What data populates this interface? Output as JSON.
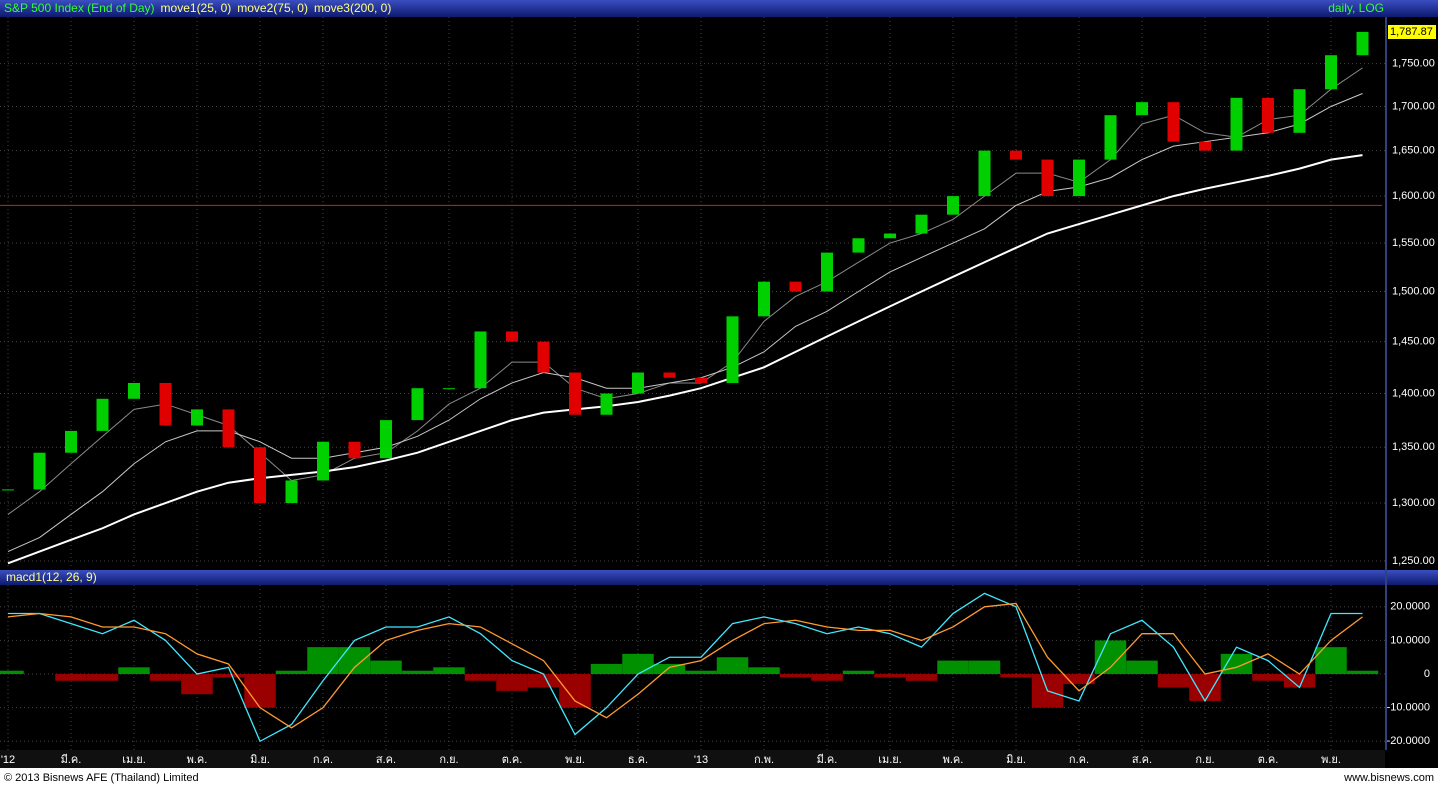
{
  "chart_data": [
    {
      "type": "candlestick",
      "title": "S&P 500 Index (End of Day)",
      "scale_label": "daily, LOG",
      "log_scale": true,
      "categories": [
        "'12",
        null,
        "มี.ค.",
        null,
        "เม.ย.",
        null,
        "พ.ค.",
        null,
        "มิ.ย.",
        null,
        "ก.ค.",
        null,
        "ส.ค.",
        null,
        "ก.ย.",
        null,
        "ต.ค.",
        null,
        "พ.ย.",
        null,
        "ธ.ค.",
        null,
        "'13",
        null,
        "ก.พ.",
        null,
        "มี.ค.",
        null,
        "เม.ย.",
        null,
        "พ.ค.",
        null,
        "มิ.ย.",
        null,
        "ก.ค.",
        null,
        "ส.ค.",
        null,
        "ก.ย.",
        null,
        "ต.ค.",
        null,
        "พ.ย.",
        null
      ],
      "close": [
        1312,
        1345,
        1365,
        1395,
        1410,
        1370,
        1385,
        1350,
        1300,
        1320,
        1355,
        1340,
        1375,
        1405,
        1405,
        1460,
        1450,
        1420,
        1380,
        1400,
        1420,
        1415,
        1410,
        1475,
        1510,
        1500,
        1540,
        1555,
        1560,
        1580,
        1600,
        1650,
        1640,
        1600,
        1640,
        1690,
        1705,
        1660,
        1650,
        1710,
        1670,
        1720,
        1760,
        1788
      ],
      "up_color": "#00d000",
      "down_color": "#e00000",
      "series": [
        {
          "name": "move1(25, 0)",
          "color": "#8a8a8a",
          "values": [
            1290,
            1310,
            1335,
            1360,
            1385,
            1390,
            1380,
            1370,
            1345,
            1320,
            1325,
            1340,
            1345,
            1365,
            1390,
            1405,
            1430,
            1430,
            1405,
            1395,
            1400,
            1410,
            1410,
            1430,
            1470,
            1495,
            1510,
            1530,
            1550,
            1560,
            1575,
            1600,
            1625,
            1625,
            1615,
            1640,
            1680,
            1690,
            1670,
            1665,
            1685,
            1690,
            1720,
            1745
          ]
        },
        {
          "name": "move2(75, 0)",
          "color": "#c8c8c8",
          "values": [
            1258,
            1270,
            1290,
            1310,
            1335,
            1355,
            1365,
            1365,
            1355,
            1340,
            1340,
            1345,
            1350,
            1360,
            1375,
            1395,
            1410,
            1420,
            1415,
            1405,
            1405,
            1410,
            1415,
            1425,
            1440,
            1465,
            1480,
            1500,
            1520,
            1535,
            1550,
            1565,
            1590,
            1605,
            1610,
            1620,
            1640,
            1655,
            1660,
            1665,
            1670,
            1680,
            1700,
            1715
          ]
        },
        {
          "name": "move3(200, 0)",
          "color": "#ffffff",
          "values": [
            1248,
            1258,
            1268,
            1278,
            1290,
            1300,
            1310,
            1318,
            1322,
            1325,
            1328,
            1332,
            1338,
            1345,
            1355,
            1365,
            1375,
            1382,
            1385,
            1388,
            1392,
            1398,
            1405,
            1415,
            1425,
            1440,
            1455,
            1470,
            1485,
            1500,
            1515,
            1530,
            1545,
            1560,
            1570,
            1580,
            1590,
            1600,
            1608,
            1615,
            1622,
            1630,
            1640,
            1645
          ]
        }
      ],
      "hline": 1590,
      "hline_color": "#d02020",
      "last_price": 1787.87,
      "last_price_label": "1,787.87",
      "ylim": [
        1250,
        1800
      ],
      "yticks": [
        {
          "value": 1250,
          "label": "1,250.00"
        },
        {
          "value": 1300,
          "label": "1,300.00"
        },
        {
          "value": 1350,
          "label": "1,350.00"
        },
        {
          "value": 1400,
          "label": "1,400.00"
        },
        {
          "value": 1450,
          "label": "1,450.00"
        },
        {
          "value": 1500,
          "label": "1,500.00"
        },
        {
          "value": 1550,
          "label": "1,550.00"
        },
        {
          "value": 1600,
          "label": "1,600.00"
        },
        {
          "value": 1650,
          "label": "1,650.00"
        },
        {
          "value": 1700,
          "label": "1,700.00"
        },
        {
          "value": 1750,
          "label": "1,750.00"
        }
      ],
      "grid": true
    },
    {
      "type": "line",
      "title": "macd1(12, 26, 9)",
      "series": [
        {
          "color": "#40e8ff",
          "values": [
            18,
            18,
            15,
            12,
            16,
            10,
            0,
            2,
            -20,
            -15,
            -2,
            10,
            14,
            14,
            17,
            12,
            4,
            0,
            -18,
            -10,
            0,
            5,
            5,
            15,
            17,
            15,
            12,
            14,
            12,
            8,
            18,
            24,
            20,
            -5,
            -8,
            12,
            16,
            8,
            -8,
            8,
            4,
            -4,
            18,
            18
          ]
        },
        {
          "color": "#ff9a30",
          "values": [
            17,
            18,
            17,
            14,
            14,
            12,
            6,
            3,
            -10,
            -16,
            -10,
            2,
            10,
            13,
            15,
            14,
            9,
            4,
            -8,
            -13,
            -6,
            2,
            4,
            10,
            15,
            16,
            14,
            13,
            13,
            10,
            14,
            20,
            21,
            5,
            -5,
            2,
            12,
            12,
            0,
            2,
            6,
            0,
            10,
            17
          ]
        }
      ],
      "histogram": {
        "up_color": "#009000",
        "down_color": "#9a0000",
        "values": [
          1,
          0,
          -2,
          -2,
          2,
          -2,
          -6,
          -1,
          -10,
          1,
          8,
          8,
          4,
          1,
          2,
          -2,
          -5,
          -4,
          -10,
          3,
          6,
          3,
          1,
          5,
          2,
          -1,
          -2,
          1,
          -1,
          -2,
          4,
          4,
          -1,
          -10,
          -3,
          10,
          4,
          -4,
          -8,
          6,
          -2,
          -4,
          8,
          1
        ]
      },
      "ylim": [
        -22,
        25
      ],
      "yticks": [
        {
          "value": 20,
          "label": "20.0000"
        },
        {
          "value": 10,
          "label": "10.0000"
        },
        0,
        {
          "value": -10,
          "label": "-10.0000"
        },
        {
          "value": -20,
          "label": "-20.0000"
        }
      ],
      "grid": true
    }
  ],
  "footer": {
    "copyright": "© 2013 Bisnews AFE (Thailand) Limited",
    "url": "www.bisnews.com"
  }
}
